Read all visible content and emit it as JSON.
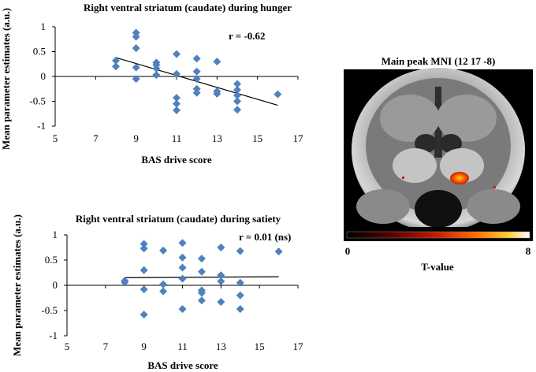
{
  "chart_data": [
    {
      "type": "scatter",
      "title": "Right ventral striatum (caudate) during hunger",
      "xlabel": "BAS drive score",
      "ylabel": "Mean parameter estimates (a.u.)",
      "annotation": "r = -0.62",
      "xlim": [
        5,
        17
      ],
      "ylim": [
        -1,
        1
      ],
      "xticks": [
        "5",
        "7",
        "9",
        "11",
        "13",
        "15",
        "17"
      ],
      "yticks": [
        "1",
        "0.5",
        "0",
        "-0.5",
        "-1"
      ],
      "points": [
        [
          8,
          0.32
        ],
        [
          8,
          0.2
        ],
        [
          9,
          0.88
        ],
        [
          9,
          0.8
        ],
        [
          9,
          0.57
        ],
        [
          9,
          0.18
        ],
        [
          9,
          -0.05
        ],
        [
          10,
          0.28
        ],
        [
          10,
          0.23
        ],
        [
          10,
          0.16
        ],
        [
          10,
          0.03
        ],
        [
          11,
          0.45
        ],
        [
          11,
          0.05
        ],
        [
          11,
          -0.43
        ],
        [
          11,
          -0.55
        ],
        [
          11,
          -0.68
        ],
        [
          12,
          0.36
        ],
        [
          12,
          0.1
        ],
        [
          12,
          -0.05
        ],
        [
          12,
          -0.25
        ],
        [
          12,
          -0.33
        ],
        [
          13,
          0.3
        ],
        [
          13,
          -0.3
        ],
        [
          13,
          -0.35
        ],
        [
          14,
          -0.15
        ],
        [
          14,
          -0.27
        ],
        [
          14,
          -0.38
        ],
        [
          14,
          -0.5
        ],
        [
          14,
          -0.67
        ],
        [
          16,
          -0.36
        ]
      ],
      "trendline": [
        [
          8,
          0.38
        ],
        [
          16,
          -0.58
        ]
      ]
    },
    {
      "type": "scatter",
      "title": "Right ventral striatum (caudate) during satiety",
      "xlabel": "BAS drive score",
      "ylabel": "Mean parameter estimates (a.u.)",
      "annotation": "r = 0.01 (ns)",
      "xlim": [
        5,
        17
      ],
      "ylim": [
        -1,
        1
      ],
      "xticks": [
        "5",
        "7",
        "9",
        "11",
        "13",
        "15",
        "17"
      ],
      "yticks": [
        "1",
        "0.5",
        "0",
        "-0.5",
        "-1"
      ],
      "points": [
        [
          8,
          0.09
        ],
        [
          8,
          0.06
        ],
        [
          9,
          0.82
        ],
        [
          9,
          0.73
        ],
        [
          9,
          0.3
        ],
        [
          9,
          -0.08
        ],
        [
          9,
          -0.58
        ],
        [
          10,
          0.69
        ],
        [
          10,
          0.02
        ],
        [
          10,
          -0.12
        ],
        [
          11,
          0.84
        ],
        [
          11,
          0.55
        ],
        [
          11,
          0.35
        ],
        [
          11,
          0.13
        ],
        [
          11,
          -0.47
        ],
        [
          12,
          0.53
        ],
        [
          12,
          0.27
        ],
        [
          12,
          -0.1
        ],
        [
          12,
          -0.15
        ],
        [
          12,
          -0.3
        ],
        [
          13,
          0.75
        ],
        [
          13,
          0.2
        ],
        [
          13,
          0.08
        ],
        [
          13,
          -0.33
        ],
        [
          14,
          0.68
        ],
        [
          14,
          0.05
        ],
        [
          14,
          -0.2
        ],
        [
          14,
          -0.47
        ],
        [
          16,
          0.67
        ]
      ],
      "trendline": [
        [
          8,
          0.15
        ],
        [
          16,
          0.17
        ]
      ]
    }
  ],
  "brain_panel": {
    "title": "Main peak MNI (12 17 -8)",
    "colorbar_min": "0",
    "colorbar_max": "8",
    "colorbar_label": "T-value",
    "marker_color": "#4f81bd",
    "colormap": [
      "#000000",
      "#5a0000",
      "#c81e00",
      "#ff6a00",
      "#ffcc33",
      "#ffffff"
    ]
  }
}
